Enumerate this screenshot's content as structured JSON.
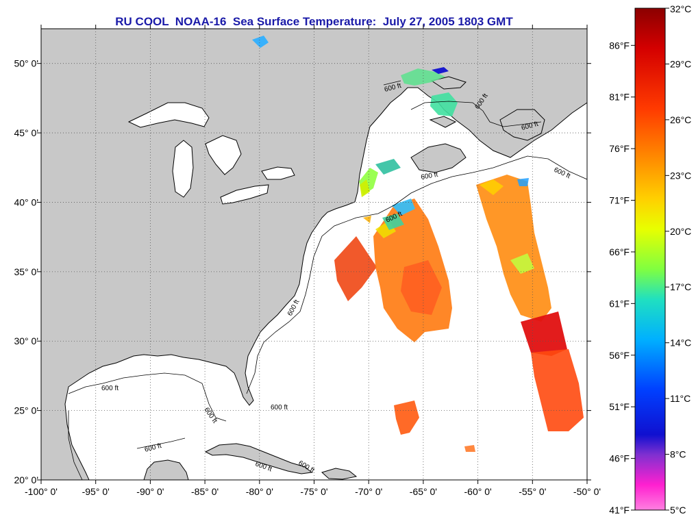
{
  "title": "RU COOL  NOAA-16  Sea Surface Temperature:  July 27, 2005 1803 GMT",
  "map": {
    "lon_range": [
      -100,
      -50
    ],
    "lat_range": [
      20,
      52.5
    ],
    "lon_ticks": [
      {
        "value": -100,
        "label": "-100° 0'"
      },
      {
        "value": -95,
        "label": "-95° 0'"
      },
      {
        "value": -90,
        "label": "-90° 0'"
      },
      {
        "value": -85,
        "label": "-85° 0'"
      },
      {
        "value": -80,
        "label": "-80° 0'"
      },
      {
        "value": -75,
        "label": "-75° 0'"
      },
      {
        "value": -70,
        "label": "-70° 0'"
      },
      {
        "value": -65,
        "label": "-65° 0'"
      },
      {
        "value": -60,
        "label": "-60° 0'"
      },
      {
        "value": -55,
        "label": "-55° 0'"
      },
      {
        "value": -50,
        "label": "-50° 0'"
      }
    ],
    "lat_ticks": [
      {
        "value": 20,
        "label": "20° 0'"
      },
      {
        "value": 25,
        "label": "25° 0'"
      },
      {
        "value": 30,
        "label": "30° 0'"
      },
      {
        "value": 35,
        "label": "35° 0'"
      },
      {
        "value": 40,
        "label": "40° 0'"
      },
      {
        "value": 45,
        "label": "45° 0'"
      },
      {
        "value": 50,
        "label": "50° 0'"
      }
    ],
    "grid": true,
    "land_color": "#c8c8c8",
    "ocean_color": "#ffffff",
    "contour_label": "600 ft"
  },
  "colorbar": {
    "celsius_labels": [
      "32°C",
      "29°C",
      "26°C",
      "23°C",
      "20°C",
      "17°C",
      "14°C",
      "11°C",
      "8°C",
      "5°C"
    ],
    "fahrenheit_labels": [
      "86°F",
      "81°F",
      "76°F",
      "71°F",
      "66°F",
      "61°F",
      "56°F",
      "51°F",
      "46°F",
      "41°F"
    ],
    "range_c": [
      5,
      32
    ],
    "colors": [
      "#8b0000",
      "#e00000",
      "#ff3a00",
      "#ff8c00",
      "#ffd000",
      "#c8ff00",
      "#40e0a0",
      "#00c8ff",
      "#0050ff",
      "#1010d0",
      "#8030d0",
      "#ff30d0",
      "#ff80e0"
    ]
  }
}
